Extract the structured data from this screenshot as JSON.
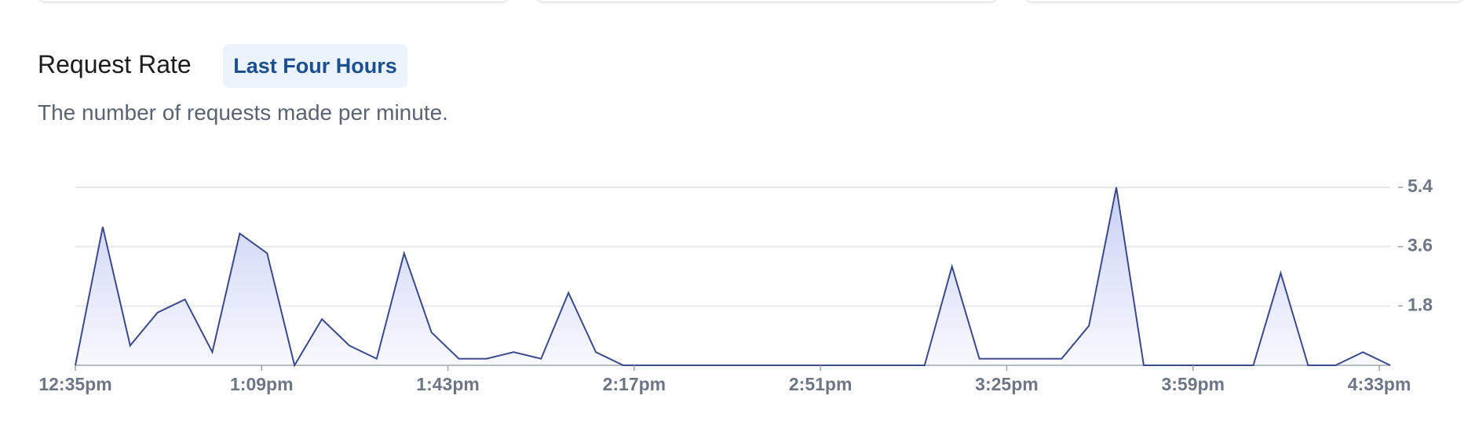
{
  "header": {
    "title": "Request Rate",
    "badge": "Last Four Hours",
    "subtitle": "The number of requests made per minute."
  },
  "chart_data": {
    "type": "area",
    "color": "#3b4a8a",
    "fill": "#c5cef5",
    "x": [
      "12:35pm",
      "12:40pm",
      "12:45pm",
      "12:50pm",
      "12:55pm",
      "1:00pm",
      "1:05pm",
      "1:10pm",
      "1:15pm",
      "1:20pm",
      "1:25pm",
      "1:30pm",
      "1:35pm",
      "1:40pm",
      "1:45pm",
      "1:50pm",
      "1:55pm",
      "2:00pm",
      "2:05pm",
      "2:10pm",
      "2:15pm",
      "2:20pm",
      "2:25pm",
      "2:30pm",
      "2:35pm",
      "2:40pm",
      "2:45pm",
      "2:50pm",
      "2:55pm",
      "3:00pm",
      "3:05pm",
      "3:10pm",
      "3:15pm",
      "3:20pm",
      "3:25pm",
      "3:30pm",
      "3:35pm",
      "3:40pm",
      "3:45pm",
      "3:50pm",
      "3:55pm",
      "4:00pm",
      "4:05pm",
      "4:10pm",
      "4:15pm",
      "4:20pm",
      "4:25pm",
      "4:30pm",
      "4:35pm"
    ],
    "values": [
      0,
      4.2,
      0.6,
      1.6,
      2.0,
      0.4,
      4.0,
      3.4,
      0,
      1.4,
      0.6,
      0.2,
      3.4,
      1.0,
      0.2,
      0.2,
      0.4,
      0.2,
      2.2,
      0.4,
      0,
      0,
      0,
      0,
      0,
      0,
      0,
      0,
      0,
      0,
      0,
      0,
      3.0,
      0.2,
      0.2,
      0.2,
      0.2,
      1.2,
      5.4,
      0,
      0,
      0,
      0,
      0,
      2.8,
      0,
      0,
      0.4,
      0
    ],
    "xlim": [
      "12:35pm",
      "4:35pm"
    ],
    "xticks": [
      "12:35pm",
      "1:09pm",
      "1:43pm",
      "2:17pm",
      "2:51pm",
      "3:25pm",
      "3:59pm",
      "4:33pm"
    ],
    "ylim": [
      0,
      5.4
    ],
    "yticks": [
      1.8,
      3.6,
      5.4
    ],
    "grid": true
  }
}
